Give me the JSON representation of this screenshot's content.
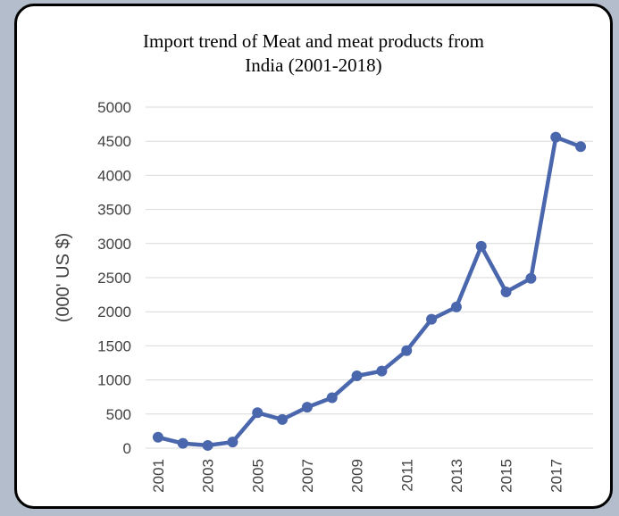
{
  "chart_data": {
    "type": "line",
    "title_lines": [
      "Import trend of Meat and meat products from",
      "India (2001-2018)"
    ],
    "ylabel": "(000' US $)",
    "xlabel": "",
    "ylim": [
      0,
      5000
    ],
    "yticks": [
      0,
      500,
      1000,
      1500,
      2000,
      2500,
      3000,
      3500,
      4000,
      4500,
      5000
    ],
    "x": [
      2001,
      2002,
      2003,
      2004,
      2005,
      2006,
      2007,
      2008,
      2009,
      2010,
      2011,
      2012,
      2013,
      2014,
      2015,
      2016,
      2017,
      2018
    ],
    "xtick_labels": [
      "2001",
      "2003",
      "2005",
      "2007",
      "2009",
      "2011",
      "2013",
      "2015",
      "2017"
    ],
    "series": [
      {
        "values": [
          160,
          70,
          40,
          90,
          520,
          420,
          600,
          740,
          1060,
          1130,
          1430,
          1890,
          2070,
          2960,
          2290,
          2490,
          4560,
          4420
        ],
        "color": "#4a66ac"
      }
    ],
    "grid": true,
    "legend": "none"
  }
}
